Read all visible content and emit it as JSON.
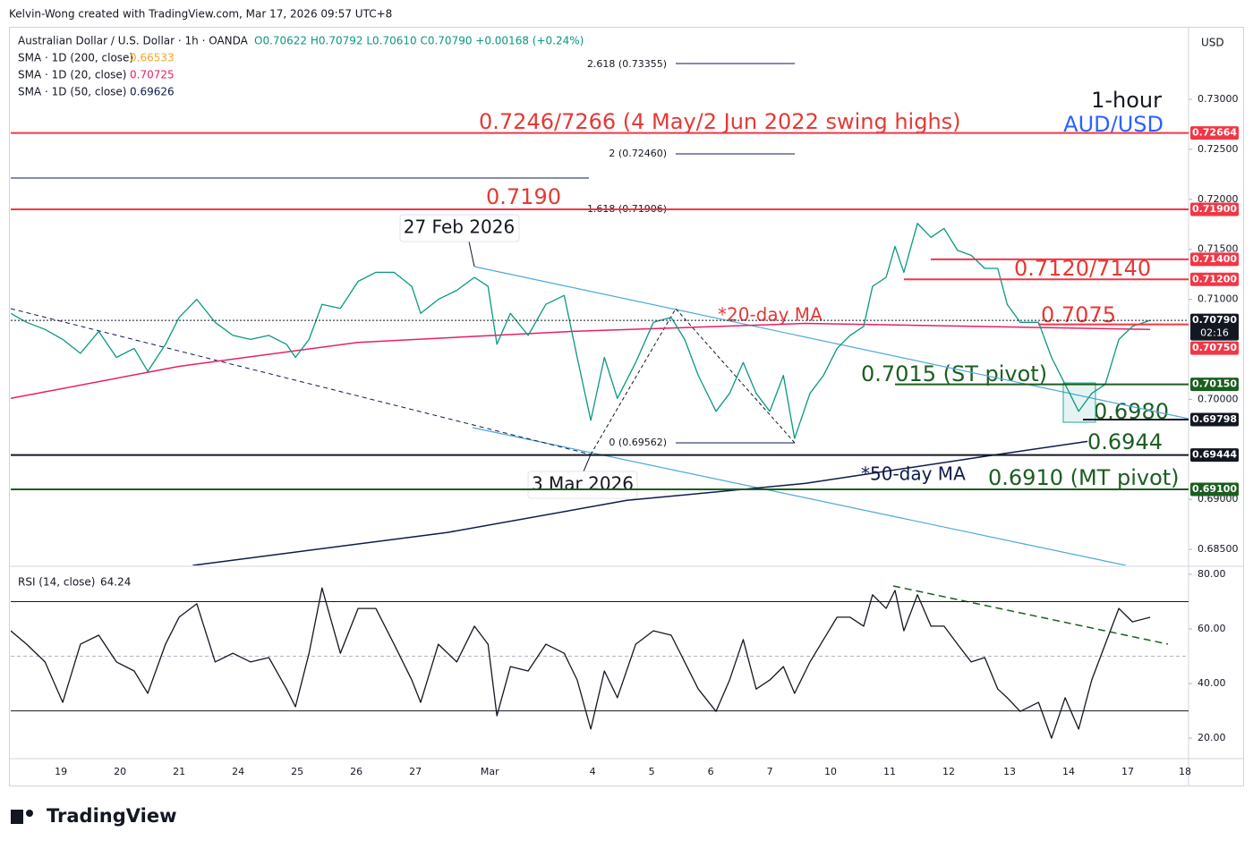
{
  "header": "Kelvin-Wong created with TradingView.com, Mar 17, 2026 09:57 UTC+8",
  "brand": "TradingView",
  "chart_data": [
    {
      "type": "line",
      "title": "Australian Dollar / U.S. Dollar · 1h · OANDA",
      "quote": "O0.70622  H0.70792  L0.70610  C0.70790  +0.00168 (+0.24%)",
      "currency": "USD",
      "legend": [
        {
          "label": "SMA · 1D (200, close)",
          "value": "0.66533",
          "color": "#f5a623"
        },
        {
          "label": "SMA · 1D (20, close)",
          "value": "0.70725",
          "color": "#e91e63"
        },
        {
          "label": "SMA · 1D (50, close)",
          "value": "0.69626",
          "color": "#0d1b4c"
        }
      ],
      "annotations": [
        "1-hour",
        "AUD/USD",
        "0.7246/7266 (4 May/2 Jun 2022 swing highs)",
        "0.7190",
        "27 Feb 2026",
        "3 Mar 2026",
        "0.7120/7140",
        "*20-day MA",
        "0.7075",
        "0.7015 (ST pivot)",
        "0.6980",
        "0.6944",
        "*50-day MA",
        "0.6910 (MT pivot)"
      ],
      "fib": [
        "2.618 (0.73355)",
        "2 (0.72460)",
        "1.618 (0.71906)",
        "0 (0.69562)"
      ],
      "countdown": "02:16",
      "x": [
        -0.85,
        -0.58,
        -0.27,
        0.03,
        0.33,
        0.64,
        0.94,
        1.24,
        1.47,
        1.77,
        2.0,
        2.3,
        2.61,
        2.91,
        3.21,
        3.52,
        3.82,
        3.97,
        4.2,
        4.42,
        4.73,
        5.03,
        5.33,
        5.64,
        5.94,
        6.09,
        6.39,
        6.7,
        7.0,
        7.23,
        7.38,
        7.61,
        7.91,
        8.21,
        8.52,
        8.74,
        8.97,
        9.2,
        9.42,
        9.73,
        10.03,
        10.33,
        10.56,
        10.79,
        11.09,
        11.32,
        11.55,
        11.77,
        12.0,
        12.23,
        12.42,
        12.68,
        12.91,
        13.14,
        13.36,
        13.59,
        13.74,
        13.97,
        14.12,
        14.27,
        14.5,
        14.73,
        14.95,
        15.18,
        15.41,
        15.64,
        15.86,
        16.02,
        16.24,
        16.55,
        16.77,
        17.0,
        17.23,
        17.45,
        17.68,
        17.91,
        18.14,
        18.44
      ],
      "series": [
        {
          "name": "AUD/USD",
          "color": "#089981",
          "values": [
            0.7086,
            0.7077,
            0.707,
            0.706,
            0.7046,
            0.7068,
            0.7042,
            0.7051,
            0.7028,
            0.7055,
            0.7082,
            0.71,
            0.7077,
            0.7064,
            0.706,
            0.7064,
            0.7055,
            0.7042,
            0.706,
            0.7095,
            0.7091,
            0.7118,
            0.7127,
            0.7127,
            0.7113,
            0.7086,
            0.71,
            0.7109,
            0.7122,
            0.7113,
            0.7055,
            0.7086,
            0.7064,
            0.7095,
            0.7104,
            0.7042,
            0.6979,
            0.7042,
            0.7001,
            0.7037,
            0.7077,
            0.7082,
            0.706,
            0.7024,
            0.6988,
            0.7006,
            0.7037,
            0.7006,
            0.6988,
            0.7024,
            0.6961,
            0.7006,
            0.7024,
            0.7051,
            0.7064,
            0.7073,
            0.7113,
            0.7122,
            0.7153,
            0.7127,
            0.7176,
            0.7162,
            0.7171,
            0.7149,
            0.7144,
            0.7131,
            0.7131,
            0.7095,
            0.7077,
            0.7077,
            0.7042,
            0.7015,
            0.6988,
            0.7006,
            0.7015,
            0.706,
            0.7073,
            0.7079
          ]
        }
      ],
      "overlays": [
        {
          "name": "SMA 20",
          "color": "#e91e63",
          "x": [
            -0.85,
            2.0,
            5.03,
            8.67,
            12.61,
            18.44
          ],
          "values": [
            0.7001,
            0.7033,
            0.7057,
            0.7068,
            0.7076,
            0.707
          ]
        },
        {
          "name": "SMA 50",
          "color": "#0d1b4c",
          "x": [
            2.23,
            6.55,
            9.58,
            12.61,
            15.64,
            17.38
          ],
          "values": [
            0.6834,
            0.6867,
            0.6899,
            0.6916,
            0.6943,
            0.6958
          ]
        }
      ],
      "levels": [
        {
          "value": 0.72664,
          "label": "0.72664",
          "color": "#f23645"
        },
        {
          "value": 0.719,
          "label": "0.71900",
          "color": "#f23645"
        },
        {
          "value": 0.714,
          "label": "0.71400",
          "color": "#f23645"
        },
        {
          "value": 0.712,
          "label": "0.71200",
          "color": "#f23645"
        },
        {
          "value": 0.7079,
          "label": "0.70790",
          "color": "#131722"
        },
        {
          "value": 0.7075,
          "label": "0.70750",
          "color": "#f23645"
        },
        {
          "value": 0.7015,
          "label": "0.70150",
          "color": "#1b5e20"
        },
        {
          "value": 0.69798,
          "label": "0.69798",
          "color": "#131722"
        },
        {
          "value": 0.69444,
          "label": "0.69444",
          "color": "#131722"
        },
        {
          "value": 0.691,
          "label": "0.69100",
          "color": "#1b5e20"
        }
      ],
      "xlim": [
        -0.85,
        19.09
      ],
      "xticks": [
        {
          "value": 0,
          "label": "19"
        },
        {
          "value": 1,
          "label": "20"
        },
        {
          "value": 2,
          "label": "21"
        },
        {
          "value": 3,
          "label": "24"
        },
        {
          "value": 4,
          "label": "25"
        },
        {
          "value": 5,
          "label": "26"
        },
        {
          "value": 6,
          "label": "27"
        },
        {
          "value": 7.26,
          "label": "Mar"
        },
        {
          "value": 9,
          "label": "4"
        },
        {
          "value": 10,
          "label": "5"
        },
        {
          "value": 11,
          "label": "6"
        },
        {
          "value": 12,
          "label": "7"
        },
        {
          "value": 13.03,
          "label": "10"
        },
        {
          "value": 14.03,
          "label": "11"
        },
        {
          "value": 15.03,
          "label": "12"
        },
        {
          "value": 16.06,
          "label": "13"
        },
        {
          "value": 17.06,
          "label": "14"
        },
        {
          "value": 18.06,
          "label": "17"
        },
        {
          "value": 19.03,
          "label": "18"
        }
      ],
      "ylim": [
        0.6834,
        0.73725
      ],
      "yticks": [
        {
          "value": 0.73,
          "label": "0.73000"
        },
        {
          "value": 0.725,
          "label": "0.72500"
        },
        {
          "value": 0.72,
          "label": "0.72000"
        },
        {
          "value": 0.715,
          "label": "0.71500"
        },
        {
          "value": 0.71,
          "label": "0.71000"
        },
        {
          "value": 0.7,
          "label": "0.70000"
        },
        {
          "value": 0.69,
          "label": "0.69000"
        },
        {
          "value": 0.685,
          "label": "0.68500"
        }
      ]
    },
    {
      "type": "line",
      "title": "RSI (14, close)",
      "last": "64.24",
      "x": [
        -0.85,
        -0.58,
        -0.27,
        0.03,
        0.33,
        0.64,
        0.94,
        1.24,
        1.47,
        1.77,
        2.0,
        2.3,
        2.61,
        2.91,
        3.21,
        3.52,
        3.82,
        3.97,
        4.2,
        4.42,
        4.73,
        5.03,
        5.33,
        5.64,
        5.94,
        6.09,
        6.39,
        6.7,
        7.0,
        7.23,
        7.38,
        7.61,
        7.91,
        8.21,
        8.52,
        8.74,
        8.97,
        9.2,
        9.42,
        9.73,
        10.03,
        10.33,
        10.56,
        10.79,
        11.09,
        11.32,
        11.55,
        11.77,
        12.0,
        12.23,
        12.42,
        12.68,
        12.91,
        13.14,
        13.36,
        13.59,
        13.74,
        13.97,
        14.12,
        14.27,
        14.5,
        14.73,
        14.95,
        15.18,
        15.41,
        15.64,
        15.86,
        16.02,
        16.24,
        16.55,
        16.77,
        17.0,
        17.23,
        17.45,
        17.68,
        17.91,
        18.14,
        18.44
      ],
      "series": [
        {
          "name": "RSI",
          "color": "#131722",
          "values": [
            59.3,
            54.4,
            47.9,
            33.1,
            54.4,
            57.7,
            47.9,
            44.6,
            36.4,
            54.4,
            64.3,
            69.2,
            47.9,
            51.1,
            47.9,
            49.5,
            38,
            31.5,
            51.1,
            75,
            51.1,
            67.5,
            67.5,
            54.4,
            41.3,
            33.1,
            54.4,
            47.9,
            61,
            54.4,
            28.2,
            46.2,
            44.6,
            54.4,
            51.1,
            41.3,
            23.3,
            44.6,
            34.8,
            54.4,
            59.3,
            57.7,
            47.9,
            38,
            29.8,
            41.3,
            56.1,
            38,
            41.3,
            46.2,
            36.4,
            47.9,
            56.1,
            64.3,
            64.3,
            61,
            72.5,
            67.5,
            74.1,
            59.3,
            72.5,
            61,
            61,
            54.4,
            47.9,
            49.5,
            38,
            34.8,
            29.8,
            33.1,
            20,
            34.8,
            23.3,
            41.3,
            54.4,
            67.5,
            62.6,
            64.24
          ]
        }
      ],
      "hlines": [
        70,
        50,
        30
      ],
      "xlim": [
        -0.85,
        19.09
      ],
      "ylim": [
        12.5,
        82.6
      ],
      "yticks": [
        {
          "value": 80,
          "label": "80.00"
        },
        {
          "value": 60,
          "label": "60.00"
        },
        {
          "value": 40,
          "label": "40.00"
        },
        {
          "value": 20,
          "label": "20.00"
        }
      ]
    }
  ]
}
